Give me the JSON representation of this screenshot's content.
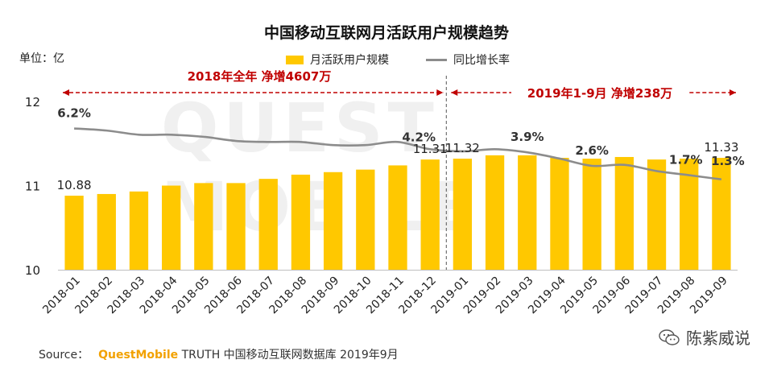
{
  "title": "中国移动互联网月活跃用户规模趋势",
  "unit_label": "单位：亿",
  "watermark": "QUEST MOBILE",
  "source": {
    "prefix": "Source：",
    "brand": "QuestMobile",
    "rest": "TRUTH 中国移动互联网数据库 2019年9月"
  },
  "footer_brand": "陈紫威说",
  "colors": {
    "bar": "#ffc800",
    "line": "#8c8c8c",
    "annotation": "#c00000"
  },
  "chart_data": {
    "type": "bar",
    "title": "中国移动互联网月活跃用户规模趋势",
    "categories": [
      "2018-01",
      "2018-02",
      "2018-03",
      "2018-04",
      "2018-05",
      "2018-06",
      "2018-07",
      "2018-08",
      "2018-09",
      "2018-10",
      "2018-11",
      "2018-12",
      "2019-01",
      "2019-02",
      "2019-03",
      "2019-04",
      "2019-05",
      "2019-06",
      "2019-07",
      "2019-08",
      "2019-09"
    ],
    "series": [
      {
        "name": "月活跃用户规模",
        "type": "bar",
        "axis": "left",
        "values": [
          10.88,
          10.9,
          10.93,
          11.0,
          11.03,
          11.03,
          11.08,
          11.13,
          11.16,
          11.19,
          11.24,
          11.31,
          11.32,
          11.36,
          11.36,
          11.33,
          11.32,
          11.34,
          11.31,
          11.32,
          11.33
        ]
      },
      {
        "name": "同比增长率",
        "type": "line",
        "axis": "right",
        "values": [
          6.2,
          6.0,
          5.6,
          5.6,
          5.4,
          5.0,
          4.9,
          4.9,
          4.6,
          4.6,
          4.9,
          4.2,
          4.0,
          4.2,
          3.9,
          3.3,
          2.6,
          2.7,
          2.1,
          1.7,
          1.3
        ]
      }
    ],
    "ylim": [
      10,
      12
    ],
    "yticks": [
      10,
      11,
      12
    ],
    "y2lim": [
      -7.4,
      8.8
    ],
    "bar_labels": [
      {
        "index": 0,
        "text": "10.88"
      },
      {
        "index": 11,
        "text": "11.31"
      },
      {
        "index": 12,
        "text": "11.32"
      },
      {
        "index": 20,
        "text": "11.33"
      }
    ],
    "line_labels": [
      {
        "index": 0,
        "text": "6.2%"
      },
      {
        "index": 11,
        "text": "4.2%"
      },
      {
        "index": 14,
        "text": "3.9%"
      },
      {
        "index": 16,
        "text": "2.6%"
      },
      {
        "index": 19,
        "text": "1.7%"
      },
      {
        "index": 20,
        "text": "1.3%"
      }
    ],
    "annotations": [
      {
        "from_index": 0,
        "to_index": 11,
        "text": "2018年全年  净增4607万"
      },
      {
        "from_index": 12,
        "to_index": 20,
        "text": "2019年1-9月  净增238万"
      }
    ],
    "legend": [
      "月活跃用户规模",
      "同比增长率"
    ],
    "legend_position": "top-center",
    "grid": false
  }
}
